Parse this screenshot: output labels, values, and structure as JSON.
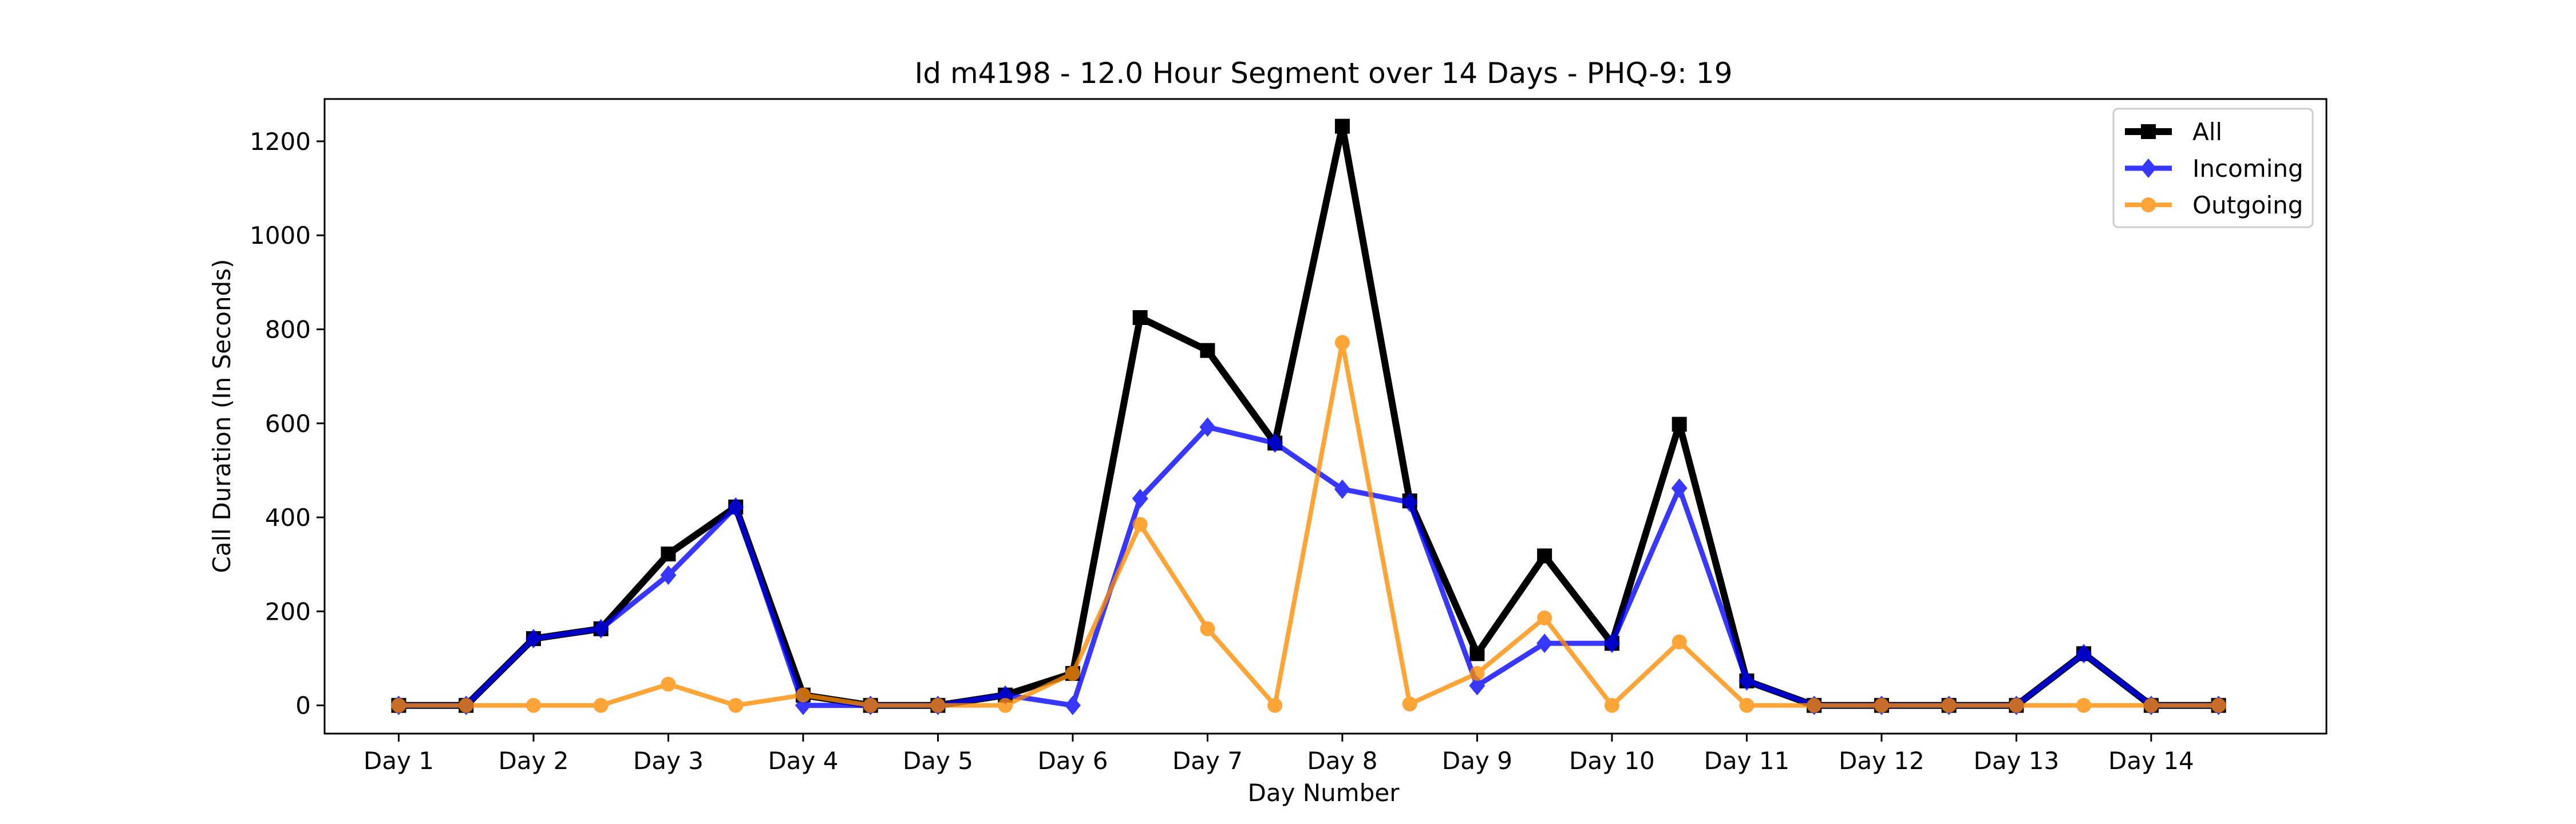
{
  "chart_data": {
    "type": "line",
    "title": "Id m4198 - 12.0 Hour Segment over 14 Days - PHQ-9: 19",
    "xlabel": "Day Number",
    "ylabel": "Call Duration (In Seconds)",
    "categories": [
      "Day 1",
      "Day 2",
      "Day 3",
      "Day 4",
      "Day 5",
      "Day 6",
      "Day 7",
      "Day 8",
      "Day 9",
      "Day 10",
      "Day 11",
      "Day 12",
      "Day 13",
      "Day 14"
    ],
    "x": [
      1,
      1.5,
      2,
      2.5,
      3,
      3.5,
      4,
      4.5,
      5,
      5.5,
      6,
      6.5,
      7,
      7.5,
      8,
      8.5,
      9,
      9.5,
      10,
      10.5,
      11,
      11.5,
      12,
      12.5,
      13,
      13.5,
      14,
      14.5
    ],
    "xlim": [
      0.45,
      15.3
    ],
    "ylim": [
      -60,
      1290
    ],
    "yticks": [
      0,
      200,
      400,
      600,
      800,
      1000,
      1200
    ],
    "grid": false,
    "legend_position": "top-right",
    "series": [
      {
        "name": "All",
        "color": "#000000",
        "marker": "square",
        "values": [
          0,
          0,
          142,
          163,
          322,
          422,
          22,
          0,
          0,
          22,
          68,
          825,
          755,
          558,
          1232,
          435,
          110,
          318,
          132,
          598,
          52,
          0,
          0,
          0,
          0,
          110,
          0,
          0
        ]
      },
      {
        "name": "Incoming",
        "color": "#0000ff",
        "marker": "diamond",
        "values": [
          0,
          0,
          142,
          163,
          277,
          422,
          0,
          0,
          0,
          22,
          0,
          440,
          592,
          558,
          460,
          432,
          42,
          132,
          132,
          462,
          52,
          0,
          0,
          0,
          0,
          110,
          0,
          0
        ]
      },
      {
        "name": "Outgoing",
        "color": "#ff8c00",
        "marker": "circle",
        "values": [
          0,
          0,
          0,
          0,
          45,
          0,
          22,
          0,
          0,
          0,
          68,
          385,
          163,
          0,
          772,
          3,
          68,
          186,
          0,
          135,
          0,
          0,
          0,
          0,
          0,
          0,
          0,
          0
        ]
      }
    ]
  }
}
